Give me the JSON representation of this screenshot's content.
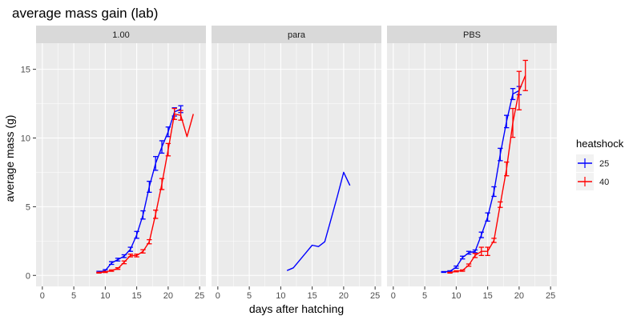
{
  "chart_data": {
    "type": "line",
    "title": "average mass gain (lab)",
    "xlabel": "days after hatching",
    "ylabel": "average mass (g)",
    "xlim": [
      -1,
      26
    ],
    "ylim": [
      -0.8,
      16.9
    ],
    "x_ticks": [
      0,
      5,
      10,
      15,
      20,
      25
    ],
    "y_ticks": [
      0,
      5,
      10,
      15
    ],
    "grid": true,
    "legend": {
      "title": "heatshock",
      "position": "right"
    },
    "colors": {
      "25": "#0000ff",
      "40": "#ff0000",
      "panel_bg": "#ebebeb",
      "strip_bg": "#d9d9d9",
      "grid": "#ffffff"
    },
    "panels": [
      {
        "strip": "1.00",
        "series": [
          {
            "name": "25",
            "color": "#0000ff",
            "x": [
              9,
              10,
              11,
              12,
              13,
              14,
              15,
              16,
              17,
              18,
              19,
              20,
              21,
              22
            ],
            "y": [
              0.25,
              0.35,
              0.9,
              1.15,
              1.4,
              1.9,
              2.95,
              4.4,
              6.45,
              8.15,
              9.35,
              10.45,
              11.9,
              12.1
            ],
            "err": [
              0.05,
              0.07,
              0.1,
              0.1,
              0.1,
              0.15,
              0.25,
              0.3,
              0.4,
              0.5,
              0.45,
              0.35,
              0.3,
              0.25
            ]
          },
          {
            "name": "40",
            "color": "#ff0000",
            "x": [
              9,
              10,
              11,
              12,
              13,
              14,
              15,
              16,
              17,
              18,
              19,
              20,
              21,
              22,
              23,
              24
            ],
            "y": [
              0.2,
              0.25,
              0.35,
              0.5,
              0.95,
              1.45,
              1.45,
              1.75,
              2.45,
              4.45,
              6.65,
              9.15,
              11.75,
              11.65,
              10.1,
              11.75
            ],
            "err": [
              0.03,
              0.04,
              0.05,
              0.06,
              0.1,
              0.1,
              0.1,
              0.12,
              0.15,
              0.3,
              0.4,
              0.45,
              0.4,
              0.35,
              null,
              null
            ]
          }
        ]
      },
      {
        "strip": "para",
        "series": [
          {
            "name": "25",
            "color": "#0000ff",
            "x": [
              11,
              12,
              13,
              14,
              15,
              16,
              17,
              18,
              19,
              20,
              21
            ],
            "y": [
              0.35,
              0.55,
              1.1,
              1.65,
              2.2,
              2.1,
              2.45,
              4.1,
              5.75,
              7.5,
              6.55
            ],
            "err": [
              null,
              null,
              null,
              null,
              null,
              null,
              null,
              null,
              null,
              null,
              null
            ]
          }
        ]
      },
      {
        "strip": "PBS",
        "series": [
          {
            "name": "25",
            "color": "#0000ff",
            "x": [
              8,
              9,
              10,
              11,
              12,
              13,
              14,
              15,
              16,
              17,
              18,
              19,
              20
            ],
            "y": [
              0.25,
              0.3,
              0.6,
              1.3,
              1.65,
              1.75,
              2.95,
              4.25,
              6.1,
              8.8,
              11.2,
              13.2,
              13.45
            ],
            "err": [
              0.03,
              0.04,
              0.08,
              0.1,
              0.1,
              0.1,
              0.2,
              0.3,
              0.35,
              0.45,
              0.45,
              0.4,
              0.3
            ]
          },
          {
            "name": "40",
            "color": "#ff0000",
            "x": [
              9,
              10,
              11,
              12,
              13,
              14,
              15,
              16,
              17,
              18,
              19,
              20,
              21
            ],
            "y": [
              0.2,
              0.3,
              0.35,
              0.75,
              1.45,
              1.75,
              1.75,
              2.55,
              5.15,
              7.75,
              11.1,
              13.45,
              14.55
            ],
            "err": [
              0.03,
              0.04,
              0.05,
              0.08,
              0.15,
              0.3,
              0.3,
              0.15,
              0.2,
              0.5,
              1.05,
              1.4,
              1.1
            ]
          }
        ]
      }
    ]
  }
}
